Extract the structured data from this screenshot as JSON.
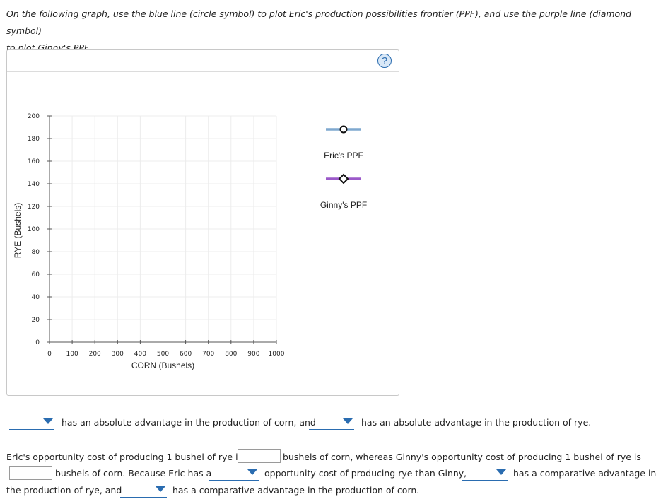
{
  "instructions": {
    "line1": "On the following graph, use the blue line (circle symbol) to plot Eric's production possibilities frontier (PPF), and use the purple line (diamond symbol)",
    "line2": "to plot Ginny's PPF."
  },
  "help": {
    "label": "?",
    "icon": "question-mark-icon"
  },
  "chart_data": {
    "type": "line",
    "xlabel": "CORN (Bushels)",
    "ylabel": "RYE (Bushels)",
    "xlim": [
      0,
      1000
    ],
    "ylim": [
      0,
      200
    ],
    "x_ticks": [
      0,
      100,
      200,
      300,
      400,
      500,
      600,
      700,
      800,
      900,
      1000
    ],
    "y_ticks": [
      0,
      20,
      40,
      60,
      80,
      100,
      120,
      140,
      160,
      180,
      200
    ],
    "x_tick_labels": [
      "0",
      "100",
      "200",
      "300",
      "400",
      "500",
      "600",
      "700",
      "800",
      "900",
      "1000"
    ],
    "y_tick_labels": [
      "0",
      "20",
      "40",
      "60",
      "80",
      "100",
      "120",
      "140",
      "160",
      "180",
      "200"
    ],
    "grid": true,
    "series": [
      {
        "name": "Eric's PPF",
        "color": "#7fa8cf",
        "marker": "circle",
        "values": []
      },
      {
        "name": "Ginny's PPF",
        "color": "#9b59c9",
        "marker": "diamond",
        "values": []
      }
    ]
  },
  "q1": {
    "text1": "has an absolute advantage in the production of corn, and",
    "text2": "has an absolute advantage in the production of rye."
  },
  "q2": {
    "part1": "Eric's opportunity cost of producing 1 bushel of rye is",
    "part2": "bushels of corn, whereas Ginny's opportunity cost of producing 1 bushel of rye is",
    "part3": "bushels of corn. Because Eric has a",
    "part4": "opportunity cost of producing rye than Ginny,",
    "part5": "has a comparative advantage in",
    "part6": "the production of rye, and",
    "part7": "has a comparative advantage in the production of corn.",
    "input_eric_value": "",
    "input_ginny_value": ""
  }
}
